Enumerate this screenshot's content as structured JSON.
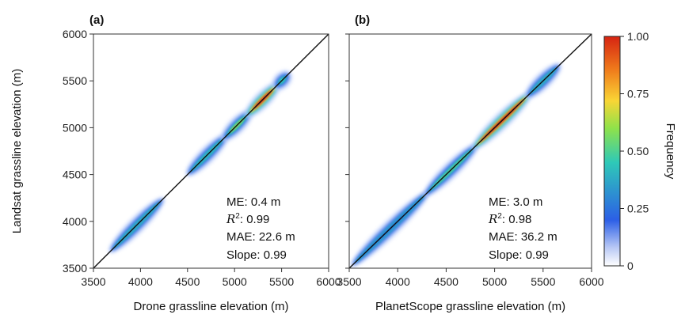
{
  "chart_data": [
    {
      "type": "heatmap",
      "panel_label": "(a)",
      "xlabel": "Drone grassline elevation (m)",
      "ylabel": "Landsat grassline elevation (m)",
      "xlim": [
        3500,
        6000
      ],
      "ylim": [
        3500,
        6000
      ],
      "xticks": [
        "3500",
        "4000",
        "4500",
        "5000",
        "5500",
        "6000"
      ],
      "yticks": [
        "3500",
        "4000",
        "4500",
        "5000",
        "5500",
        "6000"
      ],
      "identity_line": true,
      "grid": false,
      "stats": {
        "me": "ME: 0.4 m",
        "r2_prefix": "R",
        "r2_sup": "2",
        "r2_value": ": 0.99",
        "mae": "MAE: 22.6 m",
        "slope": "Slope: 0.99"
      },
      "density_clusters": [
        {
          "x": [
            3700,
            4220
          ],
          "frequency": 0.35
        },
        {
          "x": [
            4520,
            4900
          ],
          "frequency": 0.4
        },
        {
          "x": [
            4900,
            5150
          ],
          "frequency": 0.6
        },
        {
          "x": [
            5150,
            5450
          ],
          "frequency": 1.0
        },
        {
          "x": [
            5450,
            5560
          ],
          "frequency": 0.45
        }
      ]
    },
    {
      "type": "heatmap",
      "panel_label": "(b)",
      "xlabel": "PlanetScope grassline elevation (m)",
      "ylabel": "",
      "xlim": [
        3500,
        6000
      ],
      "ylim": [
        3500,
        6000
      ],
      "xticks": [
        "3500",
        "4000",
        "4500",
        "5000",
        "5500",
        "6000"
      ],
      "yticks": [],
      "identity_line": true,
      "grid": false,
      "stats": {
        "me": "ME: 3.0 m",
        "r2_prefix": "R",
        "r2_sup": "2",
        "r2_value": ":  0.98",
        "mae": "MAE: 36.2 m",
        "slope": "Slope: 0.99"
      },
      "density_clusters": [
        {
          "x": [
            3550,
            4300
          ],
          "frequency": 0.25
        },
        {
          "x": [
            4300,
            4800
          ],
          "frequency": 0.5
        },
        {
          "x": [
            4800,
            5350
          ],
          "frequency": 1.0
        },
        {
          "x": [
            5350,
            5650
          ],
          "frequency": 0.35
        }
      ]
    }
  ],
  "colorbar": {
    "label": "Frequency",
    "range": [
      0,
      1
    ],
    "ticks": [
      "0",
      "0.25",
      "0.50",
      "0.75",
      "1.00"
    ],
    "colors": [
      "#ffffff",
      "#2c5fe6",
      "#2ec9b8",
      "#8fe24a",
      "#f9d535",
      "#f07e1c",
      "#d62412"
    ]
  }
}
